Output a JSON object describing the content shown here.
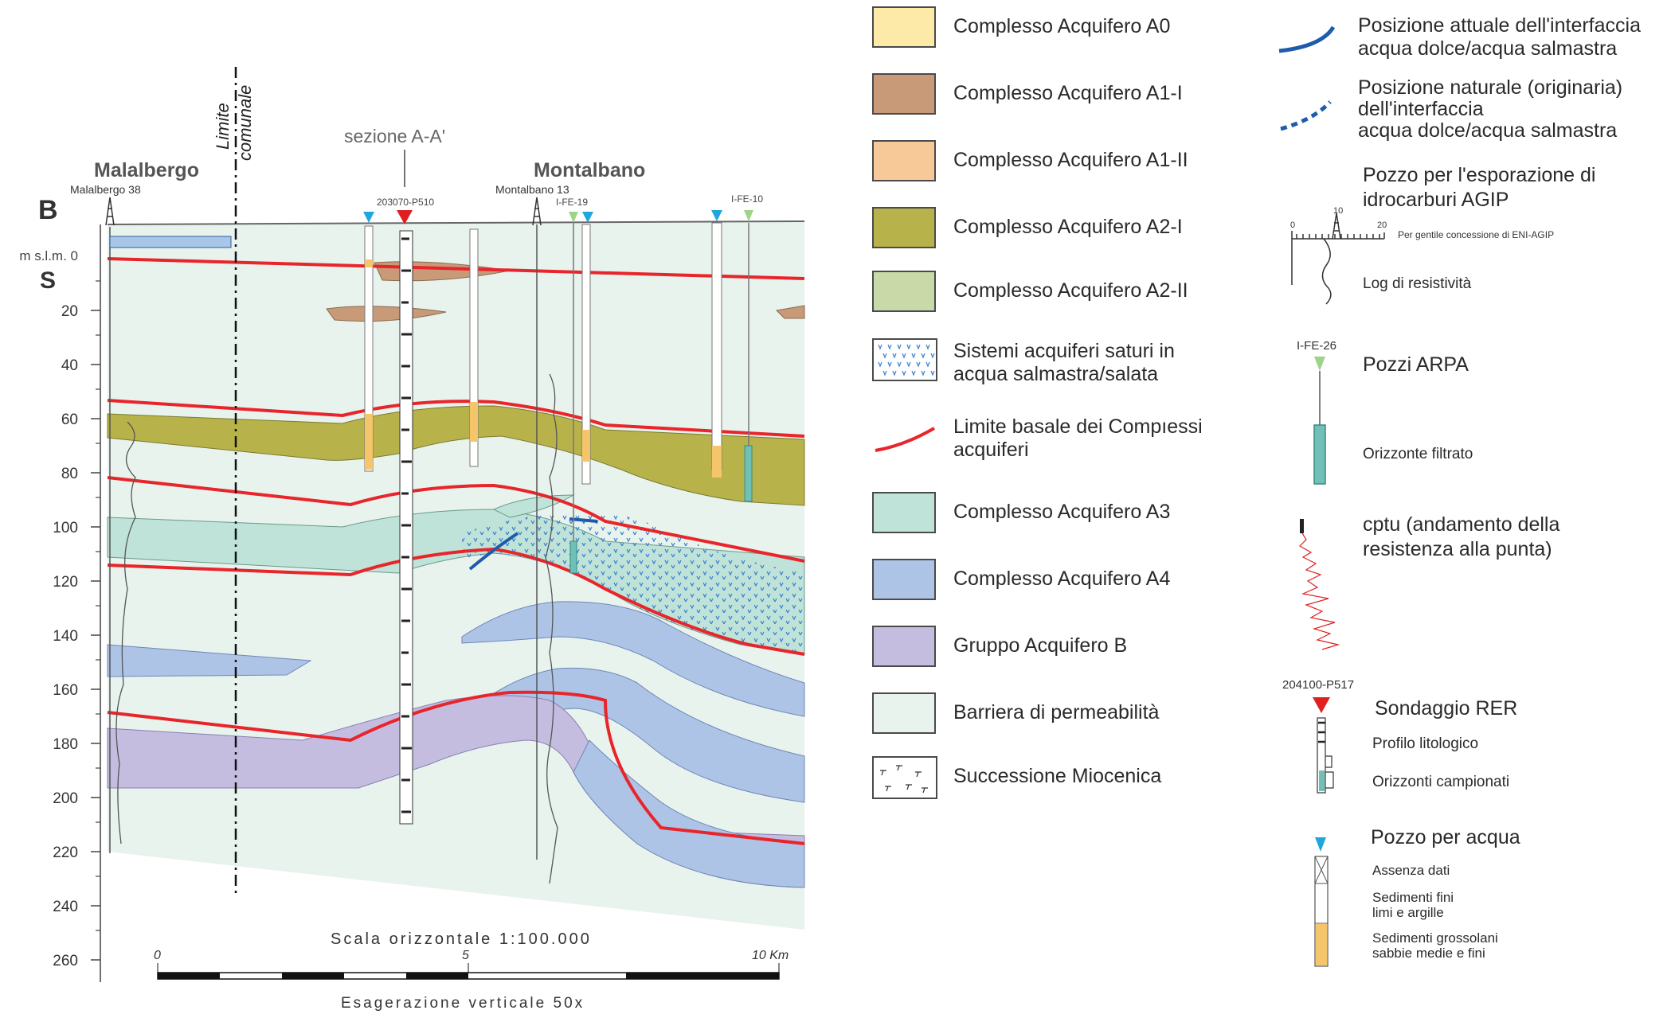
{
  "section": {
    "label_B": "B",
    "label_S": "S",
    "unit_label": "m s.l.m. 0",
    "depth_ticks": [
      "20",
      "40",
      "60",
      "80",
      "100",
      "120",
      "140",
      "160",
      "180",
      "200",
      "220",
      "240",
      "260"
    ],
    "towns": [
      {
        "name": "Malalbergo",
        "well": "Malalbergo 38"
      },
      {
        "name": "Montalbano",
        "well": "Montalbano 13"
      }
    ],
    "limit_label_1": "Limite",
    "limit_label_2": "comunale",
    "section_ref": "sezione A-A'",
    "well_labels": [
      "203070-P510",
      "I-FE-19",
      "I-FE-10"
    ],
    "scale_title": "Scala orizzontale 1:100.000",
    "scale_ticks": [
      "0",
      "5",
      "10 Km"
    ],
    "vertical_exaggeration": "Esagerazione verticale 50x"
  },
  "colors": {
    "A0": "#fde9a8",
    "A1_I": "#c89a78",
    "A1_II": "#f7c998",
    "A2_I": "#b8b24a",
    "A2_II": "#c9d9a8",
    "A3": "#bfe3d8",
    "A4": "#aec4e6",
    "B": "#c4bde0",
    "barrier": "#e8f3ee",
    "basal_limit": "#e8252a",
    "interface": "#1f5bab"
  },
  "legend_left": [
    {
      "label": "Complesso Acquifero A0",
      "swatch": "A0"
    },
    {
      "label": "Complesso Acquifero A1-I",
      "swatch": "A1_I"
    },
    {
      "label": "Complesso Acquifero A1-II",
      "swatch": "A1_II"
    },
    {
      "label": "Complesso Acquifero A2-I",
      "swatch": "A2_I"
    },
    {
      "label": "Complesso Acquifero A2-II",
      "swatch": "A2_II"
    },
    {
      "label": "Sistemi acquiferi saturi in",
      "label2": "acqua salmastra/salata",
      "swatch": "salt-pattern"
    },
    {
      "label": "Limite basale dei Compıessi",
      "label2": "acquiferi",
      "swatch": "red-line"
    },
    {
      "label": "Complesso Acquifero A3",
      "swatch": "A3"
    },
    {
      "label": "Complesso Acquifero A4",
      "swatch": "A4"
    },
    {
      "label": "Gruppo  Acquifero B",
      "swatch": "B"
    },
    {
      "label": "Barriera di permeabilità",
      "swatch": "barrier"
    },
    {
      "label": "Successione Miocenica",
      "swatch": "miocene-pattern"
    }
  ],
  "legend_right": {
    "interface_current_1": "Posizione attuale dell'interfaccia",
    "interface_current_2": "acqua dolce/acqua salmastra",
    "interface_natural_1": "Posizione naturale (originaria)",
    "interface_natural_2": "dell'interfaccia",
    "interface_natural_3": "acqua dolce/acqua salmastra",
    "agip_1": "Pozzo per l'esporazione di",
    "agip_2": "idrocarburi AGIP",
    "agip_scale": [
      "0",
      "10",
      "20"
    ],
    "agip_courtesy": "Per gentile concessione di ENI-AGIP",
    "resistivity_log": "Log di resistività",
    "arpa_id": "I-FE-26",
    "arpa_wells": "Pozzi ARPA",
    "filtered_horizon": "Orizzonte filtrato",
    "cptu_1": "cptu (andamento della",
    "cptu_2": "resistenza alla punta)",
    "rer_id": "204100-P517",
    "rer_survey": "Sondaggio RER",
    "lithologic_profile": "Profilo litologico",
    "sampled_horizons": "Orizzonti campionati",
    "water_well": "Pozzo per acqua",
    "no_data": "Assenza dati",
    "fine_1": "Sedimenti fini",
    "fine_2": "limi e argille",
    "coarse_1": "Sedimenti grossolani",
    "coarse_2": "sabbie medie e fini"
  }
}
